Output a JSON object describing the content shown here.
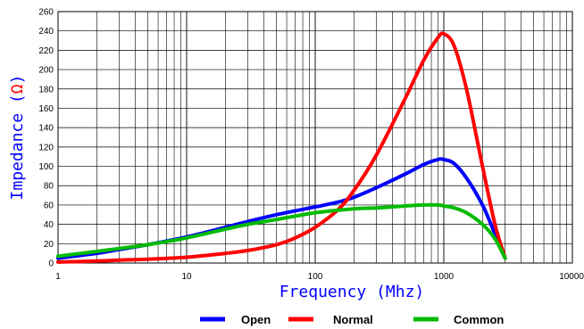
{
  "chart_data": {
    "type": "line",
    "title": "",
    "xlabel": "Frequency (Mhz)",
    "ylabel": {
      "prefix": "Impedance (",
      "unit": "Ω",
      "suffix": ")"
    },
    "x_scale": "log",
    "xlim": [
      1,
      10000
    ],
    "ylim": [
      0,
      260
    ],
    "x_ticks": [
      1,
      10,
      100,
      1000,
      10000
    ],
    "x_tick_labels": [
      "1",
      "10",
      "100",
      "1000",
      "10000"
    ],
    "y_ticks": [
      0,
      20,
      40,
      60,
      80,
      100,
      120,
      140,
      160,
      180,
      200,
      220,
      240,
      260
    ],
    "y_tick_labels": [
      "0",
      "20",
      "40",
      "60",
      "80",
      "100",
      "120",
      "140",
      "160",
      "180",
      "200",
      "220",
      "240",
      "260"
    ],
    "grid": true,
    "legend_position": "bottom",
    "series": [
      {
        "name": "Open",
        "color": "#0000ff",
        "x": [
          1,
          2,
          3,
          5,
          10,
          20,
          30,
          50,
          100,
          150,
          200,
          300,
          500,
          700,
          900,
          1000,
          1200,
          1500,
          2000,
          2500,
          3000
        ],
        "y": [
          5,
          10,
          14,
          19,
          27,
          37,
          43,
          50,
          58,
          63,
          68,
          78,
          92,
          102,
          107,
          107,
          103,
          88,
          60,
          30,
          5
        ]
      },
      {
        "name": "Normal",
        "color": "#ff0000",
        "x": [
          1,
          2,
          3,
          5,
          10,
          20,
          30,
          50,
          70,
          100,
          150,
          200,
          300,
          500,
          700,
          900,
          1000,
          1200,
          1500,
          2000,
          2500,
          3000
        ],
        "y": [
          1,
          2,
          3,
          4,
          6,
          10,
          13,
          19,
          26,
          37,
          55,
          75,
          112,
          170,
          210,
          233,
          237,
          225,
          180,
          100,
          40,
          5
        ]
      },
      {
        "name": "Common",
        "color": "#00bb00",
        "x": [
          1,
          2,
          3,
          5,
          10,
          20,
          30,
          50,
          100,
          200,
          300,
          500,
          700,
          900,
          1000,
          1200,
          1500,
          2000,
          2500,
          3000
        ],
        "y": [
          7,
          12,
          15,
          19,
          26,
          35,
          40,
          45,
          52,
          56,
          57,
          59,
          60,
          60,
          59,
          57,
          52,
          40,
          25,
          5
        ]
      }
    ]
  },
  "colors": {
    "ylabel_text": "#0000ff",
    "ylabel_unit": "#ff0000",
    "grid": "#000000"
  }
}
